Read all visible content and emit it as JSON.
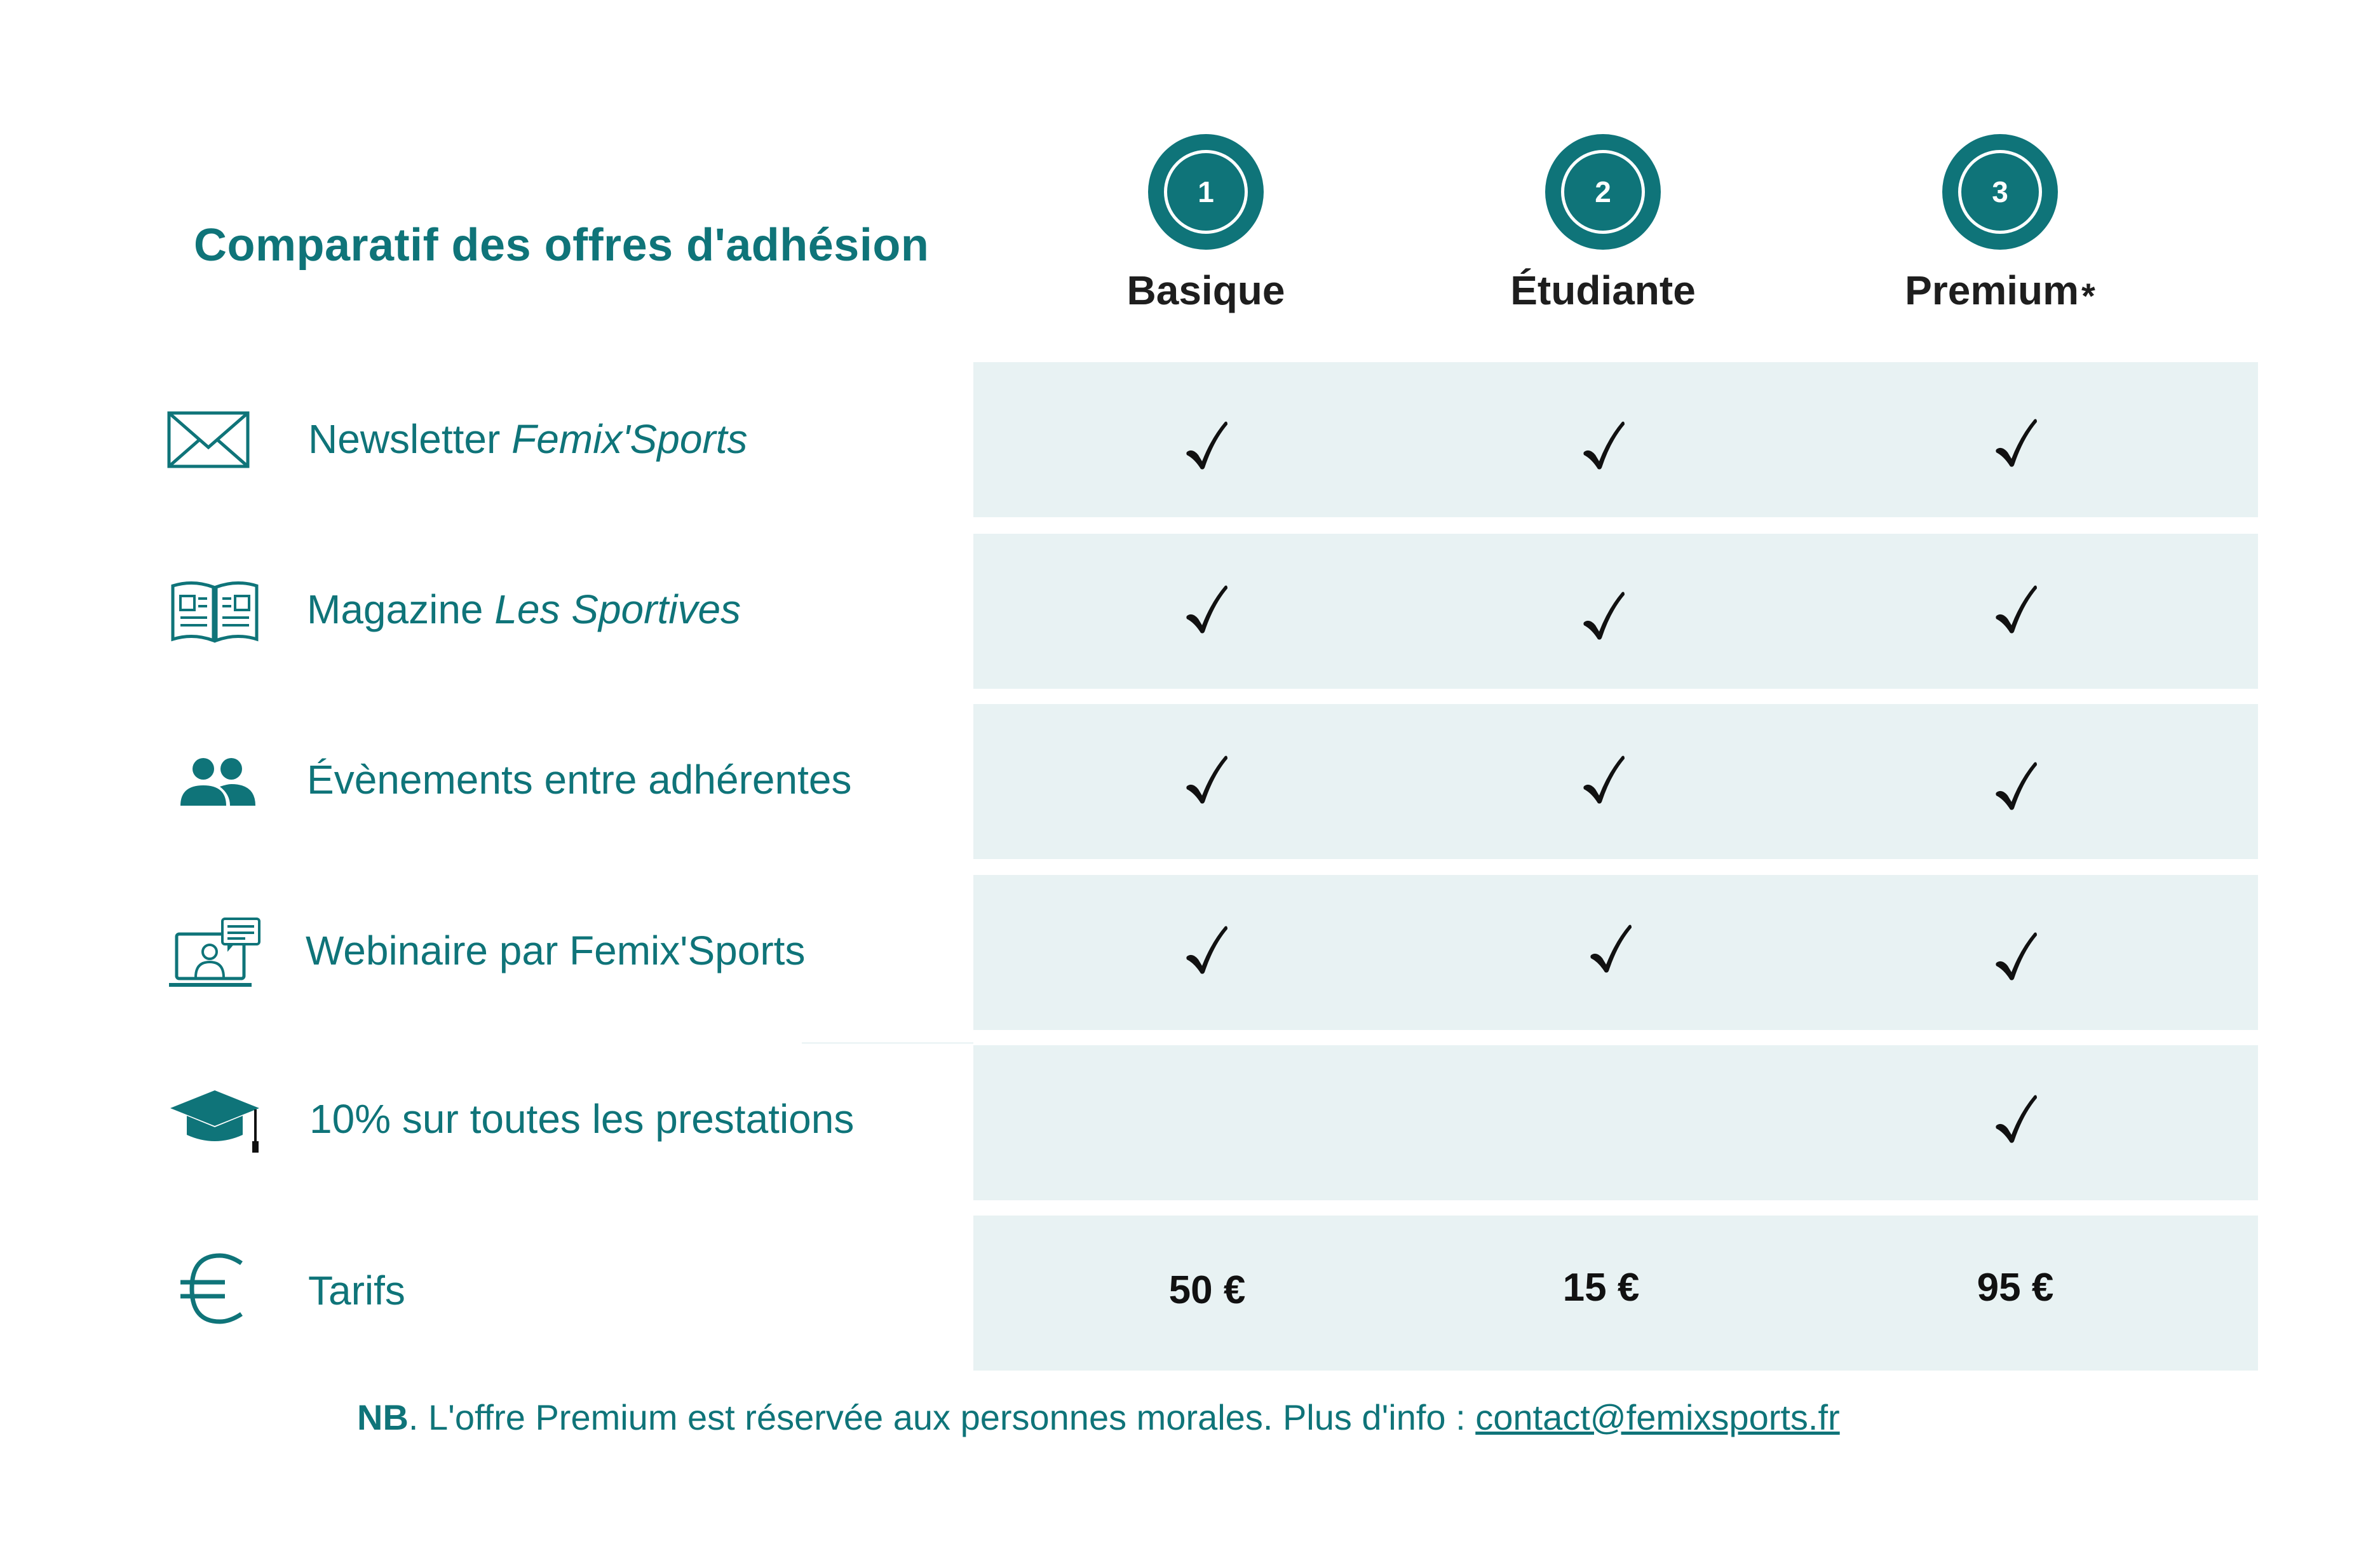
{
  "title": "Comparatif des offres d'adhésion",
  "plans": [
    {
      "number": "1",
      "name": "Basique",
      "suffix": ""
    },
    {
      "number": "2",
      "name": "Étudiante",
      "suffix": ""
    },
    {
      "number": "3",
      "name": "Premium",
      "suffix": "*"
    }
  ],
  "features": [
    {
      "icon": "envelope-icon",
      "label": "Newsletter ",
      "label_em": "Femix'Sports",
      "included": [
        true,
        true,
        true
      ]
    },
    {
      "icon": "magazine-icon",
      "label": "Magazine ",
      "label_em": "Les Sportives",
      "included": [
        true,
        true,
        true
      ]
    },
    {
      "icon": "people-icon",
      "label": "Évènements entre adhérentes",
      "label_em": "",
      "included": [
        true,
        true,
        true
      ]
    },
    {
      "icon": "webinar-icon",
      "label": "Webinaire par Femix'Sports",
      "label_em": "",
      "included": [
        true,
        true,
        true
      ]
    },
    {
      "icon": "graduation-cap-icon",
      "label": "10% sur toutes les prestations",
      "label_em": "",
      "included": [
        false,
        false,
        true
      ]
    }
  ],
  "pricing": {
    "icon": "euro-icon",
    "label": "Tarifs",
    "prices": [
      "50 €",
      "15 €",
      "95 €"
    ]
  },
  "note": {
    "prefix": "NB",
    "text": ". L'offre Premium est réservée aux personnes morales. Plus d'info : ",
    "email": "contact@femixsports.fr"
  },
  "colors": {
    "accent": "#0f7479",
    "band": "#e8f2f3",
    "check": "#111111"
  }
}
